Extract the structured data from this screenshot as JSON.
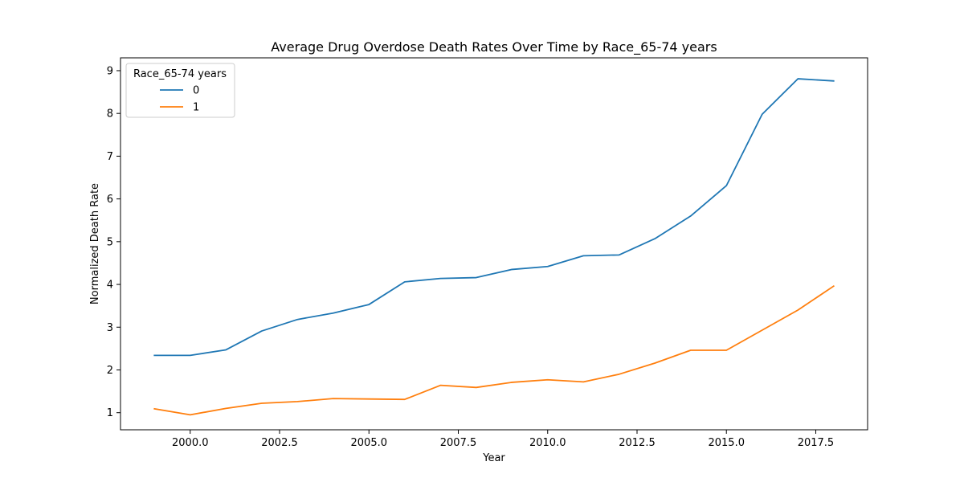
{
  "chart_data": {
    "type": "line",
    "title": "Average Drug Overdose Death Rates Over Time by Race_65-74 years",
    "xlabel": "Year",
    "ylabel": "Normalized Death Rate",
    "xlim": [
      1999,
      2018
    ],
    "ylim": [
      0.6,
      9.3
    ],
    "xticks": [
      2000.0,
      2002.5,
      2005.0,
      2007.5,
      2010.0,
      2012.5,
      2015.0,
      2017.5
    ],
    "xtick_labels": [
      "2000.0",
      "2002.5",
      "2005.0",
      "2007.5",
      "2010.0",
      "2012.5",
      "2015.0",
      "2017.5"
    ],
    "yticks": [
      1,
      2,
      3,
      4,
      5,
      6,
      7,
      8,
      9
    ],
    "ytick_labels": [
      "1",
      "2",
      "3",
      "4",
      "5",
      "6",
      "7",
      "8",
      "9"
    ],
    "grid": false,
    "legend": {
      "title": "Race_65-74 years",
      "placement": "top-left"
    },
    "x": [
      1999,
      2000,
      2001,
      2002,
      2003,
      2004,
      2005,
      2006,
      2007,
      2008,
      2009,
      2010,
      2011,
      2012,
      2013,
      2014,
      2015,
      2016,
      2017,
      2018
    ],
    "series": [
      {
        "name": "0",
        "color": "#1f77b4",
        "values": [
          2.34,
          2.34,
          2.47,
          2.91,
          3.18,
          3.33,
          3.53,
          4.06,
          4.14,
          4.16,
          4.35,
          4.42,
          4.67,
          4.69,
          5.07,
          5.6,
          6.31,
          7.98,
          8.81,
          8.76
        ]
      },
      {
        "name": "1",
        "color": "#ff7f0e",
        "values": [
          1.09,
          0.95,
          1.1,
          1.22,
          1.26,
          1.33,
          1.32,
          1.31,
          1.64,
          1.59,
          1.71,
          1.77,
          1.72,
          1.9,
          2.16,
          2.46,
          2.46,
          2.93,
          3.4,
          3.96
        ]
      }
    ]
  }
}
